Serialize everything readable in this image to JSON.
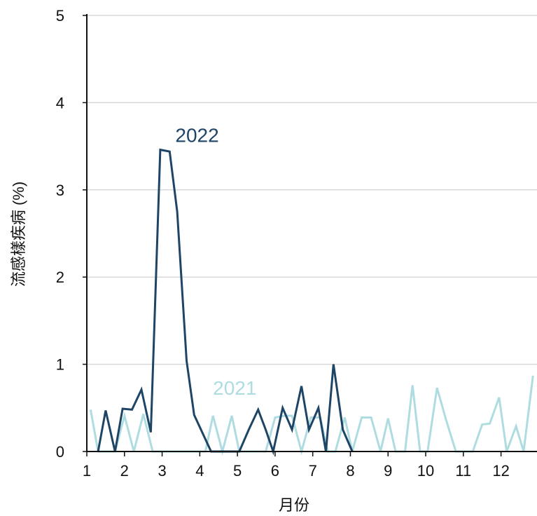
{
  "chart_data": {
    "type": "line",
    "xlabel": "月份",
    "ylabel": "流感樣疾病 (%)",
    "xlim": [
      1,
      12.9
    ],
    "ylim": [
      0,
      5
    ],
    "xticks": [
      "1",
      "2",
      "3",
      "4",
      "5",
      "6",
      "7",
      "8",
      "9",
      "10",
      "11",
      "12"
    ],
    "yticks": [
      "0",
      "1",
      "2",
      "3",
      "4",
      "5"
    ],
    "grid": "horizontal",
    "colors": {
      "2022": "#1e4466",
      "2021": "#aedce0",
      "grid": "#d9d9d9",
      "axis": "#111111"
    },
    "series": [
      {
        "name": "2021",
        "x": [
          1.1,
          1.3,
          1.55,
          1.75,
          2.0,
          2.25,
          2.5,
          2.75,
          3.0,
          3.2,
          3.4,
          3.6,
          3.8,
          4.0,
          4.15,
          4.35,
          4.6,
          4.85,
          5.05,
          5.3,
          5.55,
          5.75,
          6.0,
          6.25,
          6.45,
          6.7,
          6.95,
          7.2,
          7.4,
          7.6,
          7.85,
          8.05,
          8.3,
          8.55,
          8.8,
          9.0,
          9.2,
          9.45,
          9.65,
          9.85,
          10.05,
          10.3,
          10.55,
          10.8,
          11.0,
          11.25,
          11.5,
          11.7,
          11.95,
          12.15,
          12.4,
          12.6,
          12.85
        ],
        "values": [
          0.48,
          0.0,
          0.0,
          0.0,
          0.41,
          0.0,
          0.43,
          0.0,
          0.0,
          0.0,
          0.0,
          0.0,
          0.0,
          0.0,
          0.0,
          0.41,
          0.0,
          0.41,
          0.0,
          0.0,
          0.0,
          0.0,
          0.39,
          0.41,
          0.41,
          0.0,
          0.39,
          0.39,
          0.0,
          0.0,
          0.39,
          0.0,
          0.39,
          0.39,
          0.0,
          0.38,
          0.0,
          0.0,
          0.76,
          0.0,
          0.0,
          0.73,
          0.35,
          0.0,
          0.0,
          0.0,
          0.31,
          0.32,
          0.62,
          0.0,
          0.29,
          0.0,
          0.87
        ]
      },
      {
        "name": "2022",
        "x": [
          1.3,
          1.5,
          1.75,
          1.95,
          2.2,
          2.45,
          2.7,
          2.95,
          3.2,
          3.4,
          3.65,
          3.85,
          4.3,
          4.55,
          4.8,
          5.05,
          5.3,
          5.55,
          5.75,
          5.95,
          6.2,
          6.45,
          6.7,
          6.9,
          7.15,
          7.35,
          7.55,
          7.8,
          8.05
        ],
        "values": [
          0.0,
          0.47,
          0.0,
          0.49,
          0.48,
          0.71,
          0.22,
          3.46,
          3.44,
          2.75,
          1.04,
          0.42,
          0.0,
          0.0,
          0.0,
          0.0,
          0.25,
          0.48,
          0.25,
          0.0,
          0.5,
          0.25,
          0.75,
          0.25,
          0.5,
          0.0,
          1.0,
          0.25,
          0.0
        ]
      }
    ],
    "annotations": [
      {
        "text": "2022",
        "x": 3.35,
        "y": 3.55,
        "series": "2022"
      },
      {
        "text": "2021",
        "x": 4.35,
        "y": 0.65,
        "series": "2021"
      }
    ]
  }
}
